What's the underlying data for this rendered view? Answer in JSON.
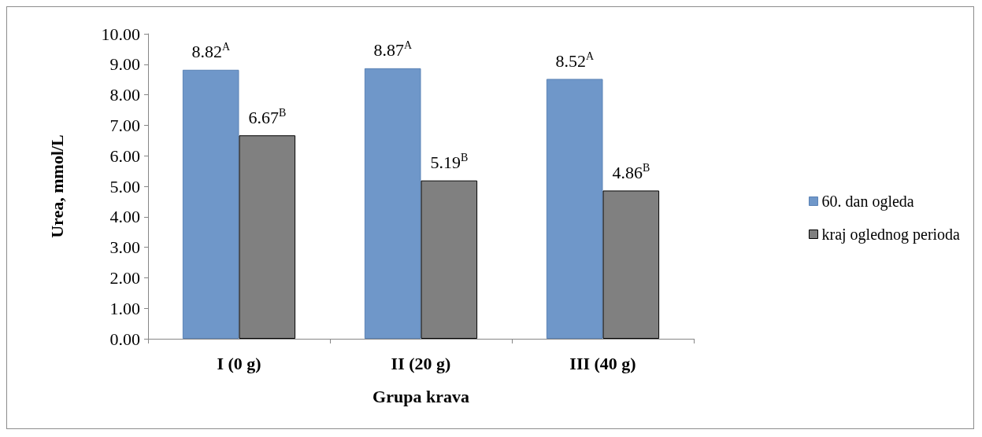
{
  "chart_data": {
    "type": "bar",
    "xlabel": "Grupa krava",
    "ylabel": "Urea, mmol/L",
    "categories": [
      "I (0 g)",
      "II (20 g)",
      "III (40 g)"
    ],
    "series": [
      {
        "name": "60. dan ogleda",
        "color": "#6f97c9",
        "values": [
          8.82,
          8.87,
          8.52
        ],
        "value_labels": [
          "8.82$^{A}$",
          "8.87$^{A}$",
          "8.52$^{A}$"
        ]
      },
      {
        "name": "kraj oglednog perioda",
        "color": "#808080",
        "values": [
          6.67,
          5.19,
          4.86
        ],
        "value_labels": [
          "6.67$^{B}$",
          "5.19$^{B}$",
          "4.86$^{B}$"
        ]
      }
    ],
    "ylim": [
      0,
      10
    ],
    "yticks": [
      {
        "value": 0,
        "label": "0.00"
      },
      {
        "value": 1,
        "label": "1.00"
      },
      {
        "value": 2,
        "label": "2.00"
      },
      {
        "value": 3,
        "label": "3.00"
      },
      {
        "value": 4,
        "label": "4.00"
      },
      {
        "value": 5,
        "label": "5.00"
      },
      {
        "value": 6,
        "label": "6.00"
      },
      {
        "value": 7,
        "label": "7.00"
      },
      {
        "value": 8,
        "label": "8.00"
      },
      {
        "value": 9,
        "label": "9.00"
      },
      {
        "value": 10,
        "label": "10.00"
      }
    ],
    "grid": false,
    "legend": "right"
  }
}
